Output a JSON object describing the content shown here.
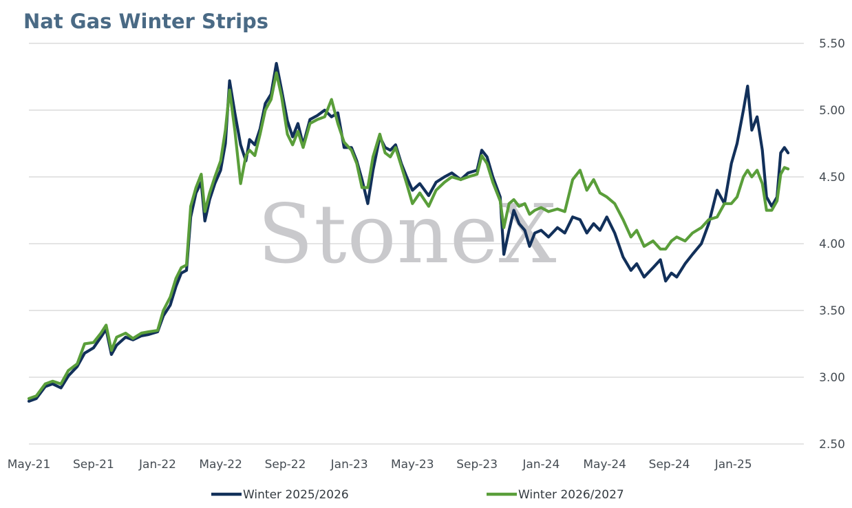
{
  "chart_data": {
    "type": "line",
    "title": "Nat Gas Winter Strips",
    "xlabel": "",
    "ylabel": "",
    "ylim": [
      2.5,
      5.5
    ],
    "xlim": [
      "2021-05-01",
      "2025-05-15"
    ],
    "grid": true,
    "legend_position": "bottom",
    "y_axis_side": "right",
    "y_ticks": [
      "2.50",
      "3.00",
      "3.50",
      "4.00",
      "4.50",
      "5.00",
      "5.50"
    ],
    "x_ticks": [
      {
        "date": "2021-05-01",
        "label": "May-21"
      },
      {
        "date": "2021-09-01",
        "label": "Sep-21"
      },
      {
        "date": "2022-01-01",
        "label": "Jan-22"
      },
      {
        "date": "2022-05-01",
        "label": "May-22"
      },
      {
        "date": "2022-09-01",
        "label": "Sep-22"
      },
      {
        "date": "2023-01-01",
        "label": "Jan-23"
      },
      {
        "date": "2023-05-01",
        "label": "May-23"
      },
      {
        "date": "2023-09-01",
        "label": "Sep-23"
      },
      {
        "date": "2024-01-01",
        "label": "Jan-24"
      },
      {
        "date": "2024-05-01",
        "label": "May-24"
      },
      {
        "date": "2024-09-01",
        "label": "Sep-24"
      },
      {
        "date": "2025-01-01",
        "label": "Jan-25"
      }
    ],
    "watermark": "StoneX",
    "series": [
      {
        "name": "Winter 2025/2026",
        "color": "#12305a",
        "points": [
          [
            "2021-05-01",
            2.82
          ],
          [
            "2021-05-15",
            2.84
          ],
          [
            "2021-06-01",
            2.93
          ],
          [
            "2021-06-15",
            2.95
          ],
          [
            "2021-07-01",
            2.92
          ],
          [
            "2021-07-15",
            3.01
          ],
          [
            "2021-08-01",
            3.08
          ],
          [
            "2021-08-15",
            3.18
          ],
          [
            "2021-09-01",
            3.22
          ],
          [
            "2021-09-15",
            3.3
          ],
          [
            "2021-09-25",
            3.36
          ],
          [
            "2021-10-05",
            3.17
          ],
          [
            "2021-10-15",
            3.24
          ],
          [
            "2021-11-01",
            3.3
          ],
          [
            "2021-11-15",
            3.28
          ],
          [
            "2021-12-01",
            3.31
          ],
          [
            "2021-12-15",
            3.32
          ],
          [
            "2022-01-01",
            3.34
          ],
          [
            "2022-01-12",
            3.46
          ],
          [
            "2022-01-25",
            3.54
          ],
          [
            "2022-02-05",
            3.68
          ],
          [
            "2022-02-15",
            3.78
          ],
          [
            "2022-02-25",
            3.8
          ],
          [
            "2022-03-05",
            4.2
          ],
          [
            "2022-03-15",
            4.38
          ],
          [
            "2022-03-25",
            4.46
          ],
          [
            "2022-04-01",
            4.17
          ],
          [
            "2022-04-10",
            4.33
          ],
          [
            "2022-04-20",
            4.45
          ],
          [
            "2022-05-01",
            4.55
          ],
          [
            "2022-05-10",
            4.75
          ],
          [
            "2022-05-18",
            5.22
          ],
          [
            "2022-05-28",
            4.98
          ],
          [
            "2022-06-08",
            4.74
          ],
          [
            "2022-06-18",
            4.62
          ],
          [
            "2022-06-25",
            4.78
          ],
          [
            "2022-07-05",
            4.74
          ],
          [
            "2022-07-15",
            4.86
          ],
          [
            "2022-07-25",
            5.05
          ],
          [
            "2022-08-05",
            5.12
          ],
          [
            "2022-08-15",
            5.35
          ],
          [
            "2022-08-25",
            5.15
          ],
          [
            "2022-09-05",
            4.92
          ],
          [
            "2022-09-15",
            4.8
          ],
          [
            "2022-09-25",
            4.9
          ],
          [
            "2022-10-05",
            4.74
          ],
          [
            "2022-10-18",
            4.93
          ],
          [
            "2022-11-01",
            4.96
          ],
          [
            "2022-11-15",
            5.0
          ],
          [
            "2022-11-28",
            4.95
          ],
          [
            "2022-12-10",
            4.98
          ],
          [
            "2022-12-22",
            4.72
          ],
          [
            "2023-01-05",
            4.72
          ],
          [
            "2023-01-15",
            4.62
          ],
          [
            "2023-01-25",
            4.48
          ],
          [
            "2023-02-05",
            4.3
          ],
          [
            "2023-02-15",
            4.55
          ],
          [
            "2023-02-28",
            4.8
          ],
          [
            "2023-03-10",
            4.72
          ],
          [
            "2023-03-20",
            4.7
          ],
          [
            "2023-03-30",
            4.74
          ],
          [
            "2023-04-10",
            4.6
          ],
          [
            "2023-04-20",
            4.5
          ],
          [
            "2023-05-01",
            4.4
          ],
          [
            "2023-05-15",
            4.45
          ],
          [
            "2023-06-01",
            4.36
          ],
          [
            "2023-06-15",
            4.46
          ],
          [
            "2023-07-01",
            4.5
          ],
          [
            "2023-07-15",
            4.53
          ],
          [
            "2023-08-01",
            4.48
          ],
          [
            "2023-08-15",
            4.53
          ],
          [
            "2023-09-01",
            4.55
          ],
          [
            "2023-09-10",
            4.7
          ],
          [
            "2023-09-20",
            4.65
          ],
          [
            "2023-10-01",
            4.5
          ],
          [
            "2023-10-15",
            4.35
          ],
          [
            "2023-10-22",
            3.92
          ],
          [
            "2023-11-01",
            4.1
          ],
          [
            "2023-11-10",
            4.25
          ],
          [
            "2023-11-20",
            4.15
          ],
          [
            "2023-12-01",
            4.1
          ],
          [
            "2023-12-10",
            3.98
          ],
          [
            "2023-12-20",
            4.08
          ],
          [
            "2024-01-01",
            4.1
          ],
          [
            "2024-01-15",
            4.05
          ],
          [
            "2024-02-01",
            4.12
          ],
          [
            "2024-02-15",
            4.08
          ],
          [
            "2024-03-01",
            4.2
          ],
          [
            "2024-03-15",
            4.18
          ],
          [
            "2024-03-28",
            4.08
          ],
          [
            "2024-04-10",
            4.15
          ],
          [
            "2024-04-22",
            4.1
          ],
          [
            "2024-05-05",
            4.2
          ],
          [
            "2024-05-20",
            4.08
          ],
          [
            "2024-06-05",
            3.9
          ],
          [
            "2024-06-20",
            3.8
          ],
          [
            "2024-07-01",
            3.85
          ],
          [
            "2024-07-15",
            3.75
          ],
          [
            "2024-08-01",
            3.82
          ],
          [
            "2024-08-15",
            3.88
          ],
          [
            "2024-08-25",
            3.72
          ],
          [
            "2024-09-05",
            3.78
          ],
          [
            "2024-09-15",
            3.75
          ],
          [
            "2024-10-01",
            3.85
          ],
          [
            "2024-10-15",
            3.92
          ],
          [
            "2024-11-01",
            4.0
          ],
          [
            "2024-11-15",
            4.15
          ],
          [
            "2024-12-01",
            4.4
          ],
          [
            "2024-12-15",
            4.3
          ],
          [
            "2024-12-28",
            4.6
          ],
          [
            "2025-01-08",
            4.75
          ],
          [
            "2025-01-20",
            5.0
          ],
          [
            "2025-01-28",
            5.18
          ],
          [
            "2025-02-05",
            4.85
          ],
          [
            "2025-02-15",
            4.95
          ],
          [
            "2025-02-25",
            4.7
          ],
          [
            "2025-03-05",
            4.35
          ],
          [
            "2025-03-15",
            4.28
          ],
          [
            "2025-03-25",
            4.35
          ],
          [
            "2025-04-01",
            4.68
          ],
          [
            "2025-04-08",
            4.72
          ],
          [
            "2025-04-15",
            4.68
          ]
        ]
      },
      {
        "name": "Winter 2026/2027",
        "color": "#5a9e3a",
        "points": [
          [
            "2021-05-01",
            2.84
          ],
          [
            "2021-05-15",
            2.86
          ],
          [
            "2021-06-01",
            2.95
          ],
          [
            "2021-06-15",
            2.97
          ],
          [
            "2021-07-01",
            2.95
          ],
          [
            "2021-07-15",
            3.05
          ],
          [
            "2021-08-01",
            3.1
          ],
          [
            "2021-08-15",
            3.25
          ],
          [
            "2021-09-01",
            3.26
          ],
          [
            "2021-09-15",
            3.33
          ],
          [
            "2021-09-25",
            3.39
          ],
          [
            "2021-10-05",
            3.2
          ],
          [
            "2021-10-15",
            3.3
          ],
          [
            "2021-11-01",
            3.33
          ],
          [
            "2021-11-15",
            3.29
          ],
          [
            "2021-12-01",
            3.33
          ],
          [
            "2021-12-15",
            3.34
          ],
          [
            "2022-01-01",
            3.35
          ],
          [
            "2022-01-12",
            3.5
          ],
          [
            "2022-01-25",
            3.6
          ],
          [
            "2022-02-05",
            3.74
          ],
          [
            "2022-02-15",
            3.82
          ],
          [
            "2022-02-25",
            3.84
          ],
          [
            "2022-03-05",
            4.28
          ],
          [
            "2022-03-15",
            4.42
          ],
          [
            "2022-03-25",
            4.52
          ],
          [
            "2022-04-01",
            4.24
          ],
          [
            "2022-04-10",
            4.38
          ],
          [
            "2022-04-20",
            4.5
          ],
          [
            "2022-05-01",
            4.62
          ],
          [
            "2022-05-10",
            4.85
          ],
          [
            "2022-05-18",
            5.15
          ],
          [
            "2022-05-28",
            4.85
          ],
          [
            "2022-06-08",
            4.45
          ],
          [
            "2022-06-18",
            4.66
          ],
          [
            "2022-06-25",
            4.7
          ],
          [
            "2022-07-05",
            4.66
          ],
          [
            "2022-07-15",
            4.82
          ],
          [
            "2022-07-25",
            5.0
          ],
          [
            "2022-08-05",
            5.08
          ],
          [
            "2022-08-15",
            5.28
          ],
          [
            "2022-08-25",
            5.1
          ],
          [
            "2022-09-05",
            4.82
          ],
          [
            "2022-09-15",
            4.74
          ],
          [
            "2022-09-25",
            4.84
          ],
          [
            "2022-10-05",
            4.72
          ],
          [
            "2022-10-18",
            4.9
          ],
          [
            "2022-11-01",
            4.93
          ],
          [
            "2022-11-15",
            4.95
          ],
          [
            "2022-11-28",
            5.08
          ],
          [
            "2022-12-10",
            4.9
          ],
          [
            "2022-12-22",
            4.76
          ],
          [
            "2023-01-05",
            4.7
          ],
          [
            "2023-01-15",
            4.6
          ],
          [
            "2023-01-25",
            4.42
          ],
          [
            "2023-02-05",
            4.42
          ],
          [
            "2023-02-15",
            4.65
          ],
          [
            "2023-02-28",
            4.82
          ],
          [
            "2023-03-10",
            4.68
          ],
          [
            "2023-03-20",
            4.65
          ],
          [
            "2023-03-30",
            4.72
          ],
          [
            "2023-04-10",
            4.58
          ],
          [
            "2023-04-20",
            4.45
          ],
          [
            "2023-05-01",
            4.3
          ],
          [
            "2023-05-15",
            4.38
          ],
          [
            "2023-06-01",
            4.28
          ],
          [
            "2023-06-15",
            4.4
          ],
          [
            "2023-07-01",
            4.46
          ],
          [
            "2023-07-15",
            4.5
          ],
          [
            "2023-08-01",
            4.48
          ],
          [
            "2023-08-15",
            4.5
          ],
          [
            "2023-09-01",
            4.52
          ],
          [
            "2023-09-10",
            4.66
          ],
          [
            "2023-09-20",
            4.6
          ],
          [
            "2023-10-01",
            4.46
          ],
          [
            "2023-10-15",
            4.32
          ],
          [
            "2023-10-22",
            4.12
          ],
          [
            "2023-11-01",
            4.3
          ],
          [
            "2023-11-10",
            4.33
          ],
          [
            "2023-11-20",
            4.28
          ],
          [
            "2023-12-01",
            4.3
          ],
          [
            "2023-12-10",
            4.22
          ],
          [
            "2023-12-20",
            4.25
          ],
          [
            "2024-01-01",
            4.27
          ],
          [
            "2024-01-15",
            4.24
          ],
          [
            "2024-02-01",
            4.26
          ],
          [
            "2024-02-15",
            4.24
          ],
          [
            "2024-03-01",
            4.48
          ],
          [
            "2024-03-15",
            4.55
          ],
          [
            "2024-03-28",
            4.4
          ],
          [
            "2024-04-10",
            4.48
          ],
          [
            "2024-04-22",
            4.38
          ],
          [
            "2024-05-05",
            4.35
          ],
          [
            "2024-05-20",
            4.3
          ],
          [
            "2024-06-05",
            4.18
          ],
          [
            "2024-06-20",
            4.05
          ],
          [
            "2024-07-01",
            4.1
          ],
          [
            "2024-07-15",
            3.98
          ],
          [
            "2024-08-01",
            4.02
          ],
          [
            "2024-08-15",
            3.96
          ],
          [
            "2024-08-25",
            3.96
          ],
          [
            "2024-09-05",
            4.02
          ],
          [
            "2024-09-15",
            4.05
          ],
          [
            "2024-10-01",
            4.02
          ],
          [
            "2024-10-15",
            4.08
          ],
          [
            "2024-11-01",
            4.12
          ],
          [
            "2024-11-15",
            4.18
          ],
          [
            "2024-12-01",
            4.2
          ],
          [
            "2024-12-15",
            4.3
          ],
          [
            "2024-12-28",
            4.3
          ],
          [
            "2025-01-08",
            4.35
          ],
          [
            "2025-01-20",
            4.5
          ],
          [
            "2025-01-28",
            4.55
          ],
          [
            "2025-02-05",
            4.5
          ],
          [
            "2025-02-15",
            4.55
          ],
          [
            "2025-02-25",
            4.45
          ],
          [
            "2025-03-05",
            4.25
          ],
          [
            "2025-03-15",
            4.25
          ],
          [
            "2025-03-25",
            4.32
          ],
          [
            "2025-04-01",
            4.52
          ],
          [
            "2025-04-08",
            4.57
          ],
          [
            "2025-04-15",
            4.56
          ]
        ]
      }
    ]
  }
}
